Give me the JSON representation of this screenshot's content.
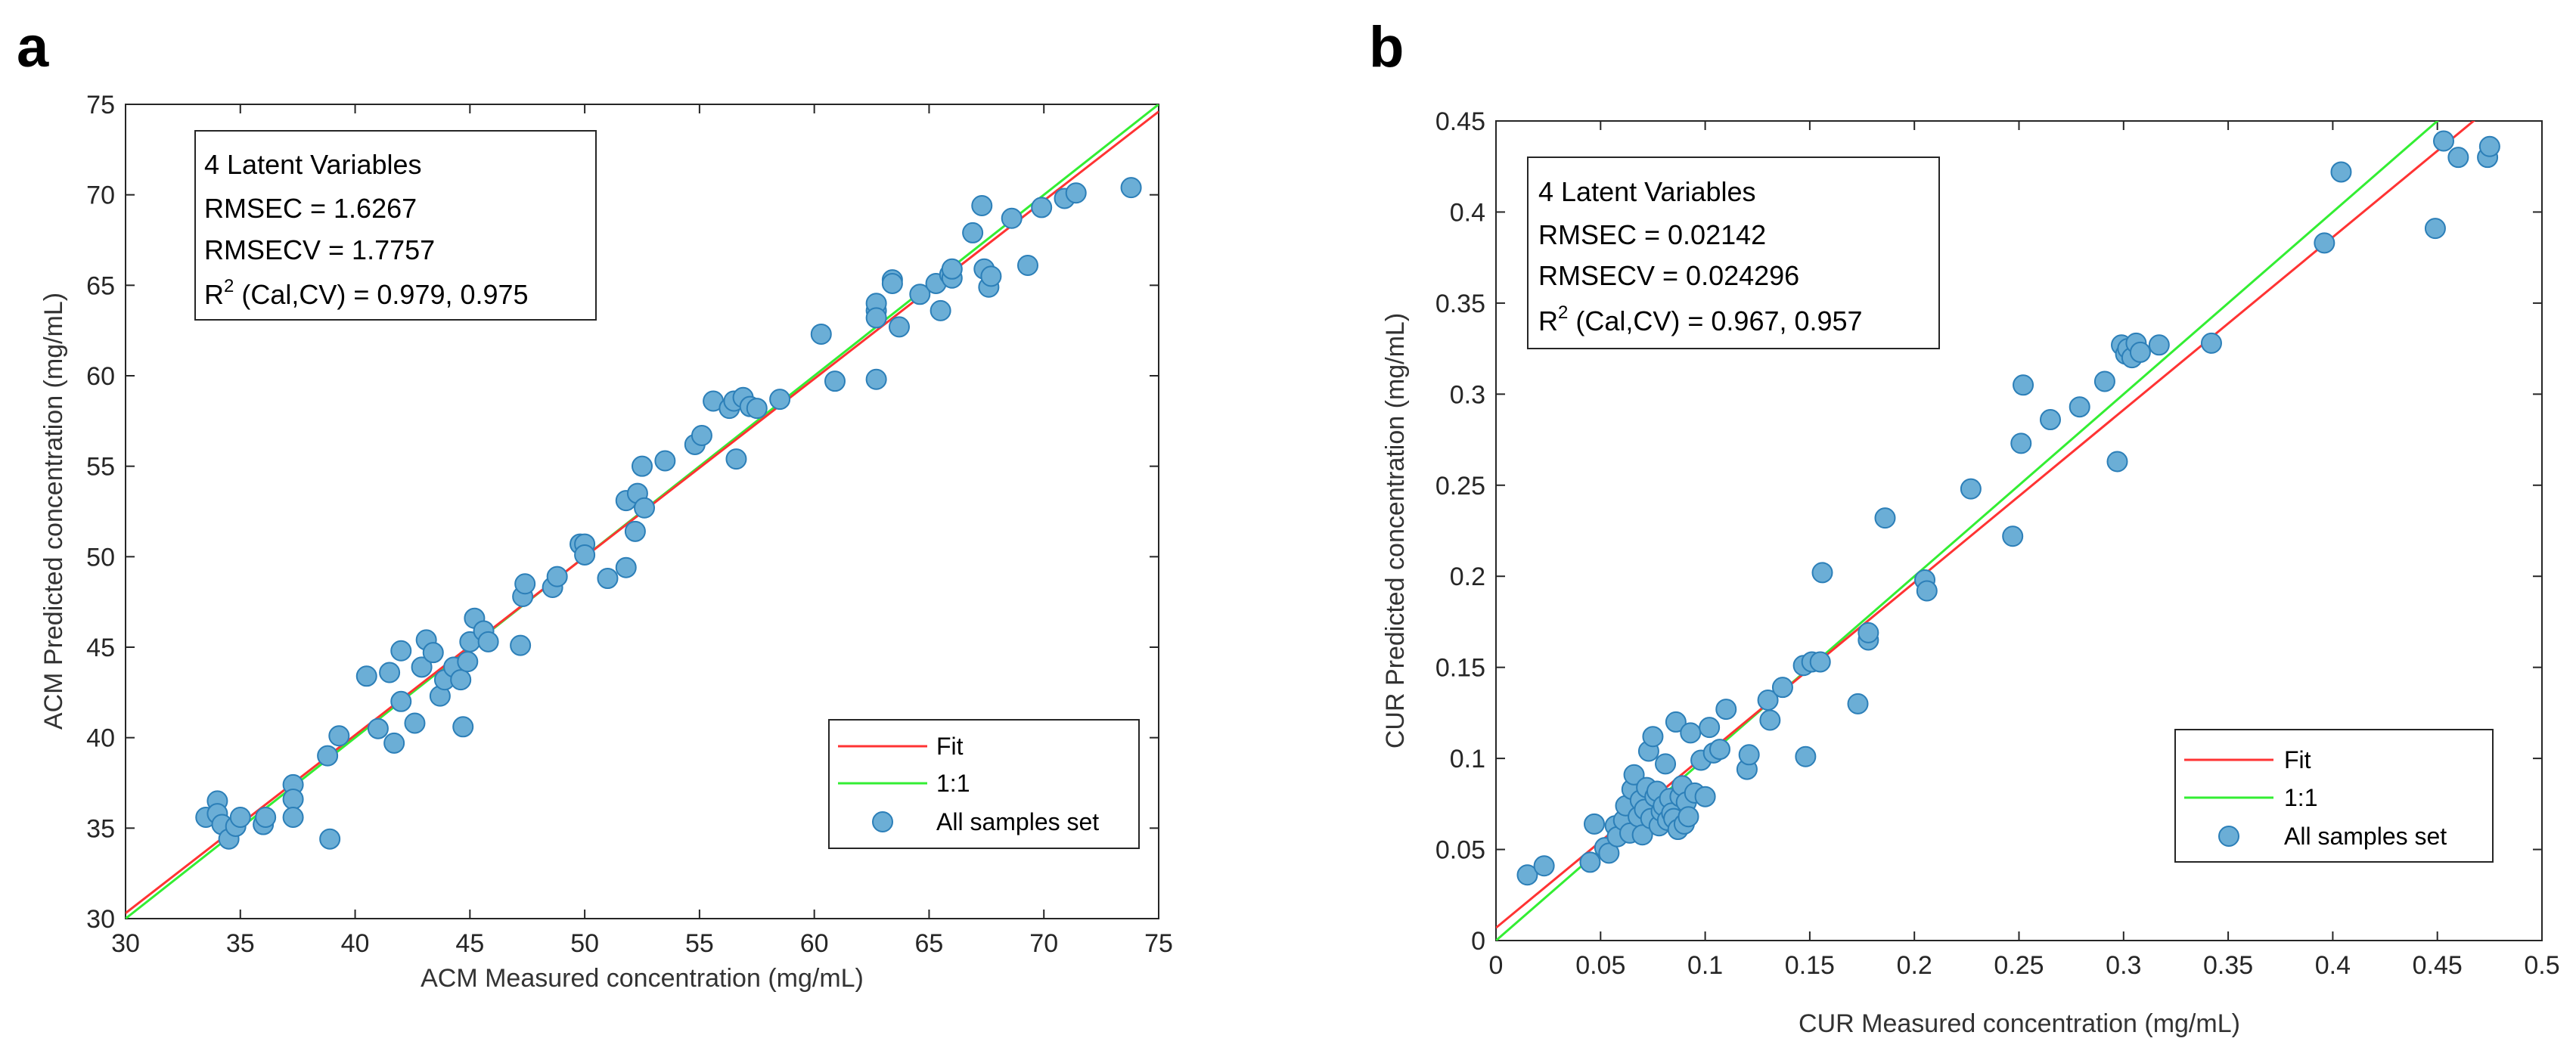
{
  "charts": [
    {
      "panel": "a",
      "type": "scatter",
      "xlabel": "ACM Measured concentration (mg/mL)",
      "ylabel": "ACM Predicted concentration (mg/mL)",
      "xlim": [
        30,
        75
      ],
      "ylim": [
        30,
        75
      ],
      "xticks": [
        30,
        35,
        40,
        45,
        50,
        55,
        60,
        65,
        70,
        75
      ],
      "yticks": [
        30,
        35,
        40,
        45,
        50,
        55,
        60,
        65,
        70,
        75
      ],
      "xtick_labels": [
        "30",
        "35",
        "40",
        "45",
        "50",
        "55",
        "60",
        "65",
        "70",
        "75"
      ],
      "ytick_labels": [
        "30",
        "35",
        "40",
        "45",
        "50",
        "55",
        "60",
        "65",
        "70",
        "75"
      ],
      "info": {
        "line1": "4 Latent Variables",
        "line2": "RMSEC = 1.6267",
        "line3": "RMSECV = 1.7757",
        "r2_prefix": "R",
        "r2_sup": "2",
        "r2_rest": " (Cal,CV) = 0.979, 0.975"
      },
      "legend": {
        "fit": "Fit",
        "one_to_one": "1:1",
        "samples": "All samples set"
      },
      "fit_line": [
        [
          30,
          30.3
        ],
        [
          75,
          74.6
        ]
      ],
      "one_to_one_line": [
        [
          30,
          30
        ],
        [
          75,
          75
        ]
      ],
      "points": [
        [
          33.5,
          35.6
        ],
        [
          34.0,
          36.5
        ],
        [
          34.0,
          35.8
        ],
        [
          34.2,
          35.2
        ],
        [
          34.5,
          34.4
        ],
        [
          34.8,
          35.1
        ],
        [
          35.0,
          35.6
        ],
        [
          36.0,
          35.2
        ],
        [
          36.1,
          35.6
        ],
        [
          37.3,
          37.4
        ],
        [
          37.3,
          36.6
        ],
        [
          37.3,
          35.6
        ],
        [
          38.8,
          39.0
        ],
        [
          38.9,
          34.4
        ],
        [
          39.3,
          40.1
        ],
        [
          40.5,
          43.4
        ],
        [
          41.0,
          40.5
        ],
        [
          41.5,
          43.6
        ],
        [
          41.7,
          39.7
        ],
        [
          42.0,
          44.8
        ],
        [
          42.0,
          42.0
        ],
        [
          42.6,
          40.8
        ],
        [
          42.9,
          43.9
        ],
        [
          43.1,
          45.4
        ],
        [
          43.4,
          44.7
        ],
        [
          43.7,
          42.3
        ],
        [
          43.9,
          43.2
        ],
        [
          44.3,
          43.9
        ],
        [
          44.6,
          43.2
        ],
        [
          44.7,
          40.6
        ],
        [
          44.9,
          44.2
        ],
        [
          45.0,
          45.3
        ],
        [
          45.2,
          46.6
        ],
        [
          45.6,
          45.9
        ],
        [
          45.8,
          45.3
        ],
        [
          47.2,
          45.1
        ],
        [
          47.3,
          47.8
        ],
        [
          47.4,
          48.5
        ],
        [
          48.6,
          48.3
        ],
        [
          48.8,
          48.9
        ],
        [
          49.8,
          50.7
        ],
        [
          50.0,
          50.7
        ],
        [
          50.0,
          50.1
        ],
        [
          51.0,
          48.8
        ],
        [
          51.8,
          53.1
        ],
        [
          51.8,
          49.4
        ],
        [
          52.2,
          51.4
        ],
        [
          52.3,
          53.5
        ],
        [
          52.5,
          55.0
        ],
        [
          52.6,
          52.7
        ],
        [
          53.5,
          55.3
        ],
        [
          54.8,
          56.2
        ],
        [
          55.1,
          56.7
        ],
        [
          55.6,
          58.6
        ],
        [
          56.3,
          58.2
        ],
        [
          56.5,
          58.6
        ],
        [
          56.6,
          55.4
        ],
        [
          56.9,
          58.8
        ],
        [
          57.2,
          58.3
        ],
        [
          57.5,
          58.2
        ],
        [
          58.5,
          58.7
        ],
        [
          60.3,
          62.3
        ],
        [
          60.9,
          59.7
        ],
        [
          62.7,
          59.8
        ],
        [
          62.7,
          63.6
        ],
        [
          62.7,
          64.0
        ],
        [
          62.7,
          63.2
        ],
        [
          63.4,
          65.3
        ],
        [
          63.4,
          65.1
        ],
        [
          63.7,
          62.7
        ],
        [
          64.6,
          64.5
        ],
        [
          65.3,
          65.1
        ],
        [
          65.5,
          63.6
        ],
        [
          65.9,
          65.6
        ],
        [
          66.0,
          65.4
        ],
        [
          66.0,
          65.9
        ],
        [
          66.9,
          67.9
        ],
        [
          67.3,
          69.4
        ],
        [
          67.4,
          65.9
        ],
        [
          67.6,
          64.9
        ],
        [
          67.7,
          65.5
        ],
        [
          68.6,
          68.7
        ],
        [
          69.3,
          66.1
        ],
        [
          69.9,
          69.3
        ],
        [
          70.9,
          69.8
        ],
        [
          71.4,
          70.1
        ],
        [
          73.8,
          70.4
        ]
      ]
    },
    {
      "panel": "b",
      "type": "scatter",
      "xlabel": "CUR Measured concentration (mg/mL)",
      "ylabel": "CUR Predicted concentration (mg/mL)",
      "xlim": [
        0,
        0.5
      ],
      "ylim": [
        0,
        0.45
      ],
      "xticks": [
        0,
        0.05,
        0.1,
        0.15,
        0.2,
        0.25,
        0.3,
        0.35,
        0.4,
        0.45,
        0.5
      ],
      "yticks": [
        0,
        0.05,
        0.1,
        0.15,
        0.2,
        0.25,
        0.3,
        0.35,
        0.4,
        0.45
      ],
      "xtick_labels": [
        "0",
        "0.05",
        "0.1",
        "0.15",
        "0.2",
        "0.25",
        "0.3",
        "0.35",
        "0.4",
        "0.45",
        "0.5"
      ],
      "ytick_labels": [
        "0",
        "0.05",
        "0.1",
        "0.15",
        "0.2",
        "0.25",
        "0.3",
        "0.35",
        "0.4",
        "0.45"
      ],
      "info": {
        "line1": "4 Latent Variables",
        "line2": "RMSEC = 0.02142",
        "line3": "RMSECV = 0.024296",
        "r2_prefix": "R",
        "r2_sup": "2",
        "r2_rest": " (Cal,CV) = 0.967, 0.957"
      },
      "legend": {
        "fit": "Fit",
        "one_to_one": "1:1",
        "samples": "All samples set"
      },
      "fit_line": [
        [
          0,
          0.007
        ],
        [
          0.5,
          0.481
        ]
      ],
      "one_to_one_line": [
        [
          0,
          0
        ],
        [
          0.5,
          0.5
        ]
      ],
      "points": [
        [
          0.015,
          0.036
        ],
        [
          0.023,
          0.041
        ],
        [
          0.045,
          0.043
        ],
        [
          0.047,
          0.064
        ],
        [
          0.052,
          0.051
        ],
        [
          0.054,
          0.048
        ],
        [
          0.057,
          0.063
        ],
        [
          0.058,
          0.057
        ],
        [
          0.061,
          0.066
        ],
        [
          0.062,
          0.074
        ],
        [
          0.064,
          0.059
        ],
        [
          0.065,
          0.083
        ],
        [
          0.066,
          0.091
        ],
        [
          0.068,
          0.068
        ],
        [
          0.069,
          0.077
        ],
        [
          0.07,
          0.058
        ],
        [
          0.071,
          0.072
        ],
        [
          0.072,
          0.084
        ],
        [
          0.073,
          0.104
        ],
        [
          0.074,
          0.067
        ],
        [
          0.075,
          0.112
        ],
        [
          0.076,
          0.079
        ],
        [
          0.077,
          0.082
        ],
        [
          0.078,
          0.063
        ],
        [
          0.079,
          0.071
        ],
        [
          0.08,
          0.074
        ],
        [
          0.081,
          0.097
        ],
        [
          0.082,
          0.066
        ],
        [
          0.083,
          0.078
        ],
        [
          0.084,
          0.07
        ],
        [
          0.085,
          0.067
        ],
        [
          0.086,
          0.12
        ],
        [
          0.087,
          0.061
        ],
        [
          0.088,
          0.079
        ],
        [
          0.089,
          0.085
        ],
        [
          0.09,
          0.064
        ],
        [
          0.091,
          0.076
        ],
        [
          0.092,
          0.068
        ],
        [
          0.093,
          0.114
        ],
        [
          0.095,
          0.081
        ],
        [
          0.098,
          0.099
        ],
        [
          0.1,
          0.079
        ],
        [
          0.102,
          0.117
        ],
        [
          0.104,
          0.103
        ],
        [
          0.107,
          0.105
        ],
        [
          0.11,
          0.127
        ],
        [
          0.12,
          0.094
        ],
        [
          0.121,
          0.102
        ],
        [
          0.13,
          0.132
        ],
        [
          0.131,
          0.121
        ],
        [
          0.137,
          0.139
        ],
        [
          0.147,
          0.151
        ],
        [
          0.148,
          0.101
        ],
        [
          0.151,
          0.153
        ],
        [
          0.155,
          0.153
        ],
        [
          0.156,
          0.202
        ],
        [
          0.173,
          0.13
        ],
        [
          0.178,
          0.165
        ],
        [
          0.178,
          0.169
        ],
        [
          0.186,
          0.232
        ],
        [
          0.205,
          0.198
        ],
        [
          0.206,
          0.192
        ],
        [
          0.227,
          0.248
        ],
        [
          0.247,
          0.222
        ],
        [
          0.251,
          0.273
        ],
        [
          0.252,
          0.305
        ],
        [
          0.265,
          0.286
        ],
        [
          0.279,
          0.293
        ],
        [
          0.291,
          0.307
        ],
        [
          0.297,
          0.263
        ],
        [
          0.299,
          0.327
        ],
        [
          0.301,
          0.322
        ],
        [
          0.302,
          0.325
        ],
        [
          0.304,
          0.32
        ],
        [
          0.306,
          0.328
        ],
        [
          0.308,
          0.323
        ],
        [
          0.317,
          0.327
        ],
        [
          0.342,
          0.328
        ],
        [
          0.396,
          0.383
        ],
        [
          0.404,
          0.422
        ],
        [
          0.449,
          0.391
        ],
        [
          0.453,
          0.439
        ],
        [
          0.46,
          0.43
        ],
        [
          0.474,
          0.43
        ],
        [
          0.475,
          0.436
        ]
      ]
    }
  ]
}
